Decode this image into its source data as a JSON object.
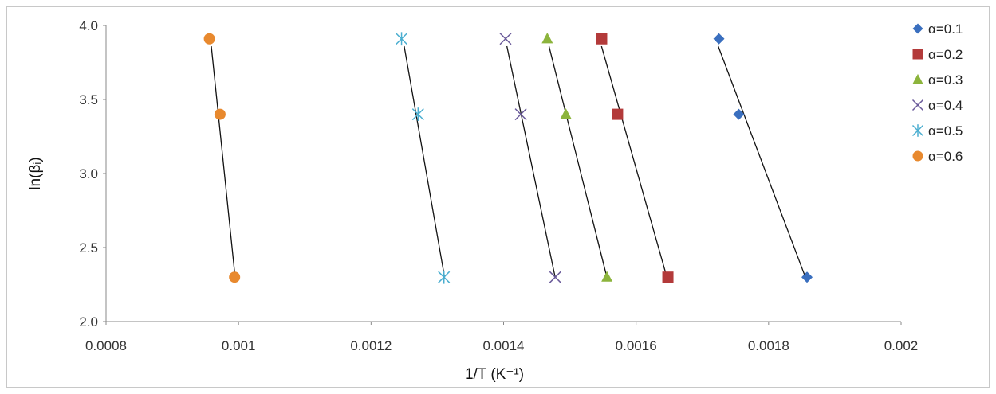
{
  "chart_data": {
    "type": "scatter",
    "title": "",
    "xlabel": "1/T (K⁻¹)",
    "ylabel": "ln(βᵢ)",
    "xlim": [
      0.0008,
      0.002
    ],
    "ylim": [
      2.0,
      4.0
    ],
    "x_ticks": [
      "0.0008",
      "0.001",
      "0.0012",
      "0.0014",
      "0.0016",
      "0.0018",
      "0.002"
    ],
    "y_ticks": [
      "2.0",
      "2.5",
      "3.0",
      "3.5",
      "4.0"
    ],
    "grid": false,
    "legend_position": "right",
    "trendlines": true,
    "series": [
      {
        "name": "α=0.1",
        "marker": "diamond",
        "color": "#3a6fbf",
        "points": [
          [
            0.001725,
            3.91
          ],
          [
            0.001755,
            3.4
          ],
          [
            0.001858,
            2.3
          ]
        ]
      },
      {
        "name": "α=0.2",
        "marker": "square",
        "color": "#b33a3a",
        "points": [
          [
            0.001548,
            3.91
          ],
          [
            0.001572,
            3.4
          ],
          [
            0.001648,
            2.3
          ]
        ]
      },
      {
        "name": "α=0.3",
        "marker": "triangle",
        "color": "#8cb43c",
        "points": [
          [
            0.001466,
            3.91
          ],
          [
            0.001494,
            3.4
          ],
          [
            0.001556,
            2.3
          ]
        ]
      },
      {
        "name": "α=0.4",
        "marker": "x",
        "color": "#6a5a9a",
        "points": [
          [
            0.001403,
            3.91
          ],
          [
            0.001426,
            3.4
          ],
          [
            0.001478,
            2.3
          ]
        ]
      },
      {
        "name": "α=0.5",
        "marker": "star",
        "color": "#4aaed0",
        "points": [
          [
            0.001246,
            3.91
          ],
          [
            0.001271,
            3.4
          ],
          [
            0.00131,
            2.3
          ]
        ]
      },
      {
        "name": "α=0.6",
        "marker": "circle",
        "color": "#e8892e",
        "points": [
          [
            0.000956,
            3.91
          ],
          [
            0.000972,
            3.4
          ],
          [
            0.000994,
            2.3
          ]
        ]
      }
    ]
  }
}
